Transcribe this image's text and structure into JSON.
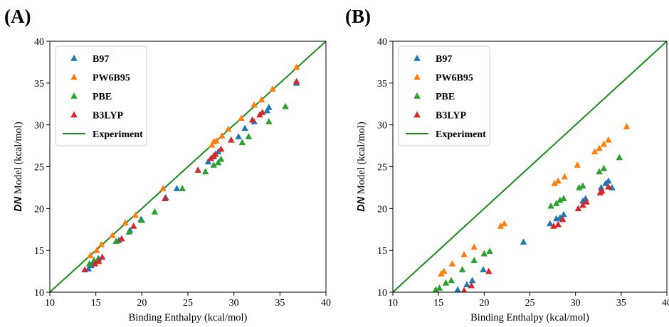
{
  "panel_labels": [
    "(A)",
    "(B)"
  ],
  "chart_data": [
    {
      "type": "scatter",
      "panel": "(A)",
      "xlabel": "Binding Enthalpy (kcal/mol)",
      "ylabel_bold": "DN",
      "ylabel_rest": " Model (kcal/mol)",
      "xlim": [
        10,
        40
      ],
      "ylim": [
        10,
        40
      ],
      "xticks": [
        10,
        15,
        20,
        25,
        30,
        35,
        40
      ],
      "yticks": [
        10,
        15,
        20,
        25,
        30,
        35,
        40
      ],
      "grid": false,
      "legend_position": "top-left",
      "reference_line": {
        "name": "Experiment",
        "color": "#1a8c1a",
        "from": [
          10,
          10
        ],
        "to": [
          40,
          40
        ]
      },
      "series": [
        {
          "name": "B97",
          "color": "#1f77b4",
          "marker": "triangle",
          "points": [
            [
              14.2,
              12.8
            ],
            [
              14.5,
              13.2
            ],
            [
              14.8,
              13.6
            ],
            [
              15.3,
              14.0
            ],
            [
              17.5,
              16.2
            ],
            [
              18.7,
              17.4
            ],
            [
              19.9,
              18.7
            ],
            [
              22.6,
              21.3
            ],
            [
              23.8,
              22.4
            ],
            [
              27.2,
              25.6
            ],
            [
              27.8,
              26.2
            ],
            [
              28.3,
              26.8
            ],
            [
              30.5,
              28.6
            ],
            [
              31.2,
              29.6
            ],
            [
              32.2,
              30.4
            ],
            [
              33.6,
              31.7
            ],
            [
              33.8,
              32.1
            ],
            [
              36.8,
              35.0
            ]
          ]
        },
        {
          "name": "PW6B95",
          "color": "#ff7f0e",
          "marker": "triangle",
          "points": [
            [
              14.4,
              14.4
            ],
            [
              15.1,
              15.0
            ],
            [
              15.6,
              15.7
            ],
            [
              16.8,
              16.8
            ],
            [
              18.2,
              18.3
            ],
            [
              19.3,
              19.2
            ],
            [
              22.3,
              22.4
            ],
            [
              27.6,
              27.6
            ],
            [
              27.8,
              28.0
            ],
            [
              28.1,
              28.1
            ],
            [
              28.7,
              28.7
            ],
            [
              29.4,
              29.5
            ],
            [
              30.8,
              30.8
            ],
            [
              32.2,
              32.4
            ],
            [
              33.0,
              33.0
            ],
            [
              34.2,
              34.3
            ],
            [
              36.8,
              36.9
            ]
          ]
        },
        {
          "name": "PBE",
          "color": "#2ca02c",
          "marker": "triangle",
          "points": [
            [
              14.3,
              13.4
            ],
            [
              14.8,
              13.8
            ],
            [
              15.2,
              13.9
            ],
            [
              17.2,
              16.1
            ],
            [
              18.6,
              17.2
            ],
            [
              20.0,
              18.6
            ],
            [
              21.4,
              19.6
            ],
            [
              24.4,
              22.4
            ],
            [
              26.9,
              24.4
            ],
            [
              27.8,
              25.2
            ],
            [
              28.3,
              25.5
            ],
            [
              28.6,
              25.9
            ],
            [
              30.9,
              27.9
            ],
            [
              31.6,
              28.6
            ],
            [
              33.8,
              30.4
            ],
            [
              35.6,
              32.2
            ]
          ]
        },
        {
          "name": "B3LYP",
          "color": "#d62728",
          "marker": "triangle",
          "points": [
            [
              13.8,
              12.7
            ],
            [
              14.9,
              13.4
            ],
            [
              15.3,
              13.7
            ],
            [
              15.7,
              14.2
            ],
            [
              17.8,
              16.4
            ],
            [
              19.1,
              17.9
            ],
            [
              22.5,
              21.2
            ],
            [
              26.1,
              24.6
            ],
            [
              27.5,
              26.0
            ],
            [
              27.8,
              26.3
            ],
            [
              28.0,
              26.5
            ],
            [
              28.6,
              27.1
            ],
            [
              29.7,
              28.2
            ],
            [
              32.0,
              30.6
            ],
            [
              32.8,
              31.2
            ],
            [
              33.1,
              31.5
            ],
            [
              36.8,
              35.2
            ]
          ]
        }
      ],
      "legend": [
        "B97",
        "PW6B95",
        "PBE",
        "B3LYP",
        "Experiment"
      ]
    },
    {
      "type": "scatter",
      "panel": "(B)",
      "xlabel": "Binding Enthalpy (kcal/mol)",
      "ylabel_bold": "DN",
      "ylabel_rest": " Model (kcal/mol)",
      "xlim": [
        10,
        40
      ],
      "ylim": [
        10,
        40
      ],
      "xticks": [
        10,
        15,
        20,
        25,
        30,
        35,
        40
      ],
      "yticks": [
        10,
        15,
        20,
        25,
        30,
        35,
        40
      ],
      "grid": false,
      "legend_position": "top-left",
      "reference_line": {
        "name": "Experiment",
        "color": "#1a8c1a",
        "from": [
          10,
          10
        ],
        "to": [
          40,
          40
        ]
      },
      "series": [
        {
          "name": "B97",
          "color": "#1f77b4",
          "marker": "triangle",
          "points": [
            [
              17.1,
              10.3
            ],
            [
              18.1,
              10.9
            ],
            [
              18.7,
              11.4
            ],
            [
              19.9,
              12.7
            ],
            [
              24.3,
              16.0
            ],
            [
              27.2,
              18.2
            ],
            [
              27.9,
              18.8
            ],
            [
              28.3,
              18.9
            ],
            [
              28.7,
              19.3
            ],
            [
              30.8,
              20.9
            ],
            [
              31.1,
              21.2
            ],
            [
              32.8,
              22.5
            ],
            [
              33.3,
              23.0
            ],
            [
              33.6,
              23.3
            ],
            [
              34.0,
              22.5
            ]
          ]
        },
        {
          "name": "PW6B95",
          "color": "#ff7f0e",
          "marker": "triangle",
          "points": [
            [
              15.3,
              12.2
            ],
            [
              15.6,
              12.5
            ],
            [
              16.5,
              13.4
            ],
            [
              17.8,
              14.5
            ],
            [
              18.9,
              15.4
            ],
            [
              21.8,
              17.9
            ],
            [
              22.2,
              18.2
            ],
            [
              27.7,
              23.0
            ],
            [
              28.1,
              23.3
            ],
            [
              28.8,
              23.8
            ],
            [
              30.2,
              25.2
            ],
            [
              32.1,
              26.8
            ],
            [
              32.6,
              27.2
            ],
            [
              33.1,
              27.7
            ],
            [
              33.6,
              28.2
            ],
            [
              35.6,
              29.8
            ]
          ]
        },
        {
          "name": "PBE",
          "color": "#2ca02c",
          "marker": "triangle",
          "points": [
            [
              14.7,
              10.3
            ],
            [
              15.1,
              10.5
            ],
            [
              15.8,
              11.1
            ],
            [
              16.4,
              11.4
            ],
            [
              17.6,
              12.7
            ],
            [
              18.9,
              13.8
            ],
            [
              20.0,
              14.6
            ],
            [
              20.6,
              14.9
            ],
            [
              27.3,
              20.3
            ],
            [
              27.9,
              20.6
            ],
            [
              28.3,
              21.0
            ],
            [
              28.7,
              21.2
            ],
            [
              30.4,
              22.5
            ],
            [
              30.8,
              22.7
            ],
            [
              32.6,
              24.4
            ],
            [
              33.1,
              24.8
            ],
            [
              34.8,
              26.1
            ]
          ]
        },
        {
          "name": "B3LYP",
          "color": "#d62728",
          "marker": "triangle",
          "points": [
            [
              17.8,
              10.2
            ],
            [
              18.6,
              10.8
            ],
            [
              20.5,
              12.5
            ],
            [
              27.6,
              17.9
            ],
            [
              28.1,
              18.1
            ],
            [
              28.6,
              18.7
            ],
            [
              30.3,
              20.0
            ],
            [
              30.8,
              20.4
            ],
            [
              31.2,
              20.8
            ],
            [
              32.7,
              21.9
            ],
            [
              32.9,
              22.1
            ],
            [
              33.6,
              22.6
            ]
          ]
        }
      ],
      "legend": [
        "B97",
        "PW6B95",
        "PBE",
        "B3LYP",
        "Experiment"
      ]
    }
  ]
}
